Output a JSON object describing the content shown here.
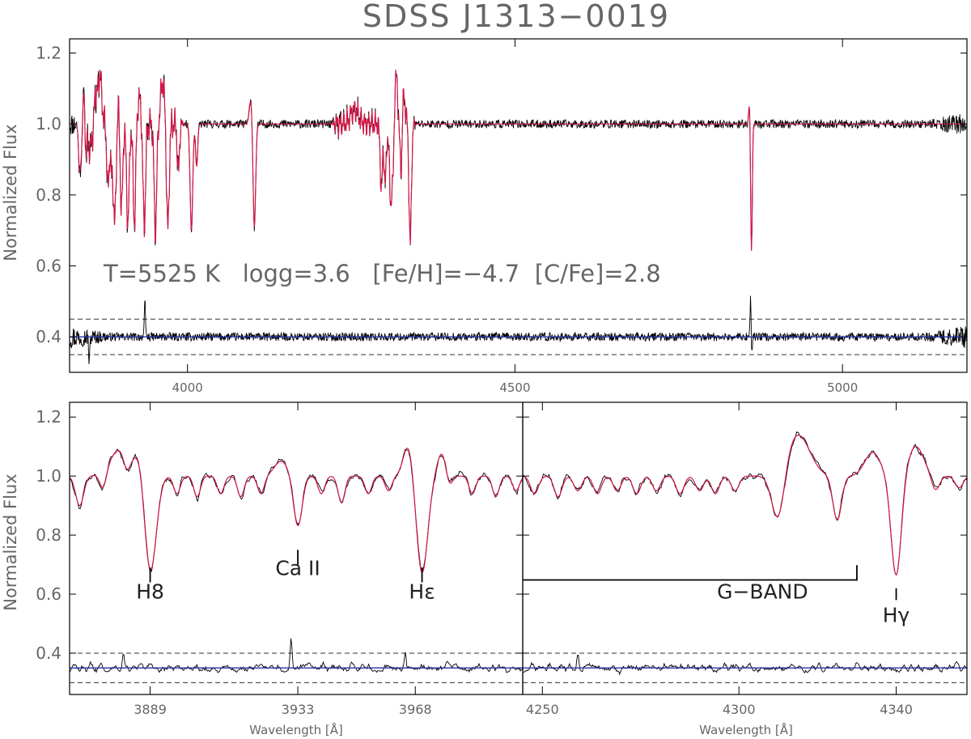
{
  "figure": {
    "title": "SDSS J1313−0019"
  },
  "chart_data": [
    {
      "id": "top",
      "type": "line",
      "title": "SDSS J1313−0019",
      "xlabel": "",
      "ylabel": "Normalized Flux",
      "xlim": [
        3820,
        5190
      ],
      "ylim": [
        0.3,
        1.24
      ],
      "xticks": [
        4000,
        4500,
        5000
      ],
      "yticks": [
        0.4,
        0.6,
        0.8,
        1.0,
        1.2
      ],
      "yticklabels": [
        "0.4",
        "0.6",
        "0.8",
        "1.0",
        "1.2"
      ],
      "annotation": "T=5525 K   logg=3.6   [Fe/H]=−4.7  [C/Fe]=2.8",
      "continuum": 1.0,
      "residual_baseline": 0.4,
      "residual_band": [
        0.35,
        0.45
      ],
      "lines": [
        {
          "w": 3835,
          "depth": 0.12,
          "width": 1.5
        },
        {
          "w": 3838,
          "depth": 0.1,
          "width": 1.5
        },
        {
          "w": 3845,
          "depth": 0.14,
          "width": 1.5
        },
        {
          "w": 3851,
          "depth": 0.1,
          "width": 1.5
        },
        {
          "w": 3856,
          "depth": 0.1,
          "width": 1.5
        },
        {
          "w": 3878,
          "depth": 0.14,
          "width": 1.6
        },
        {
          "w": 3880,
          "depth": 0.08,
          "width": 1.4
        },
        {
          "w": 3884,
          "depth": 0.12,
          "width": 1.5
        },
        {
          "w": 3889,
          "depth": 0.29,
          "width": 2.2
        },
        {
          "w": 3899,
          "depth": 0.28,
          "width": 2.0
        },
        {
          "w": 3909,
          "depth": 0.28,
          "width": 2.0
        },
        {
          "w": 3919,
          "depth": 0.28,
          "width": 2.0
        },
        {
          "w": 3934,
          "depth": 0.29,
          "width": 2.0
        },
        {
          "w": 3951,
          "depth": 0.3,
          "width": 2.0
        },
        {
          "w": 3970,
          "depth": 0.3,
          "width": 2.0
        },
        {
          "w": 3986,
          "depth": 0.14,
          "width": 1.6
        },
        {
          "w": 4006,
          "depth": 0.3,
          "width": 2.0
        },
        {
          "w": 4014,
          "depth": 0.12,
          "width": 1.6
        },
        {
          "w": 4102,
          "depth": 0.3,
          "width": 2.0
        },
        {
          "w": 4296,
          "depth": 0.18,
          "width": 1.8
        },
        {
          "w": 4302,
          "depth": 0.16,
          "width": 1.8
        },
        {
          "w": 4310,
          "depth": 0.22,
          "width": 1.8
        },
        {
          "w": 4314,
          "depth": 0.17,
          "width": 1.5
        },
        {
          "w": 4326,
          "depth": 0.16,
          "width": 1.5
        },
        {
          "w": 4340,
          "depth": 0.34,
          "width": 1.8
        },
        {
          "w": 4861,
          "depth": 0.36,
          "width": 1.2
        }
      ],
      "bumps": [
        {
          "w": 3842,
          "height": 0.1,
          "width": 2.5
        },
        {
          "w": 3858,
          "height": 0.1,
          "width": 2.5
        },
        {
          "w": 3866,
          "height": 0.14,
          "width": 3.0
        },
        {
          "w": 3895,
          "height": 0.08,
          "width": 3.0
        },
        {
          "w": 3926,
          "height": 0.07,
          "width": 3.0
        },
        {
          "w": 3962,
          "height": 0.12,
          "width": 3.0
        },
        {
          "w": 4097,
          "height": 0.07,
          "width": 2.5
        },
        {
          "w": 4255,
          "height": 0.04,
          "width": 6.0
        },
        {
          "w": 4318,
          "height": 0.14,
          "width": 2.5
        },
        {
          "w": 4330,
          "height": 0.08,
          "width": 2.5
        },
        {
          "w": 4858,
          "height": 0.06,
          "width": 1.2
        }
      ],
      "oscillating_regions": [
        {
          "from": 3840,
          "to": 3995,
          "amp": 0.05
        },
        {
          "from": 4220,
          "to": 4350,
          "amp": 0.04
        }
      ],
      "noise": {
        "observed": 0.012,
        "edge_observed": 0.035,
        "residual": 0.012,
        "edge_residual": 0.035
      },
      "residual_spikes": [
        {
          "w": 3935,
          "value": 0.5
        },
        {
          "w": 3850,
          "value": 0.32
        },
        {
          "w": 4860,
          "value": 0.56
        },
        {
          "w": 4861,
          "value": 0.3
        }
      ],
      "series": [
        {
          "name": "observed",
          "color": "#000000"
        },
        {
          "name": "model",
          "color": "#d01545"
        },
        {
          "name": "residual",
          "color": "#000000"
        },
        {
          "name": "baseline",
          "color": "#2233aa"
        }
      ]
    },
    {
      "id": "bottom-left",
      "type": "line",
      "xlabel": "Wavelength [Å]",
      "ylabel": "Normalized Flux",
      "xlim": [
        3865,
        4000
      ],
      "ylim": [
        0.26,
        1.25
      ],
      "xticks": [
        3889,
        3933,
        3968
      ],
      "yticks": [
        0.4,
        0.6,
        0.8,
        1.0,
        1.2
      ],
      "yticklabels": [
        "0.4",
        "0.6",
        "0.8",
        "1.0",
        "1.2"
      ],
      "continuum": 1.0,
      "residual_baseline": 0.35,
      "residual_band": [
        0.3,
        0.4
      ],
      "lines": [
        {
          "w": 3868,
          "depth": 0.1,
          "width": 1.2
        },
        {
          "w": 3875,
          "depth": 0.06,
          "width": 1.0
        },
        {
          "w": 3882,
          "depth": 0.05,
          "width": 1.0
        },
        {
          "w": 3889,
          "depth": 0.33,
          "width": 1.8
        },
        {
          "w": 3897,
          "depth": 0.06,
          "width": 1.0
        },
        {
          "w": 3903,
          "depth": 0.07,
          "width": 1.0
        },
        {
          "w": 3910,
          "depth": 0.06,
          "width": 1.0
        },
        {
          "w": 3916,
          "depth": 0.07,
          "width": 1.0
        },
        {
          "w": 3922,
          "depth": 0.06,
          "width": 1.0
        },
        {
          "w": 3933,
          "depth": 0.17,
          "width": 1.3
        },
        {
          "w": 3940,
          "depth": 0.06,
          "width": 1.0
        },
        {
          "w": 3946,
          "depth": 0.09,
          "width": 1.0
        },
        {
          "w": 3954,
          "depth": 0.06,
          "width": 1.0
        },
        {
          "w": 3960,
          "depth": 0.05,
          "width": 1.0
        },
        {
          "w": 3970,
          "depth": 0.33,
          "width": 1.7
        },
        {
          "w": 3978,
          "depth": 0.05,
          "width": 1.0
        },
        {
          "w": 3985,
          "depth": 0.06,
          "width": 1.0
        },
        {
          "w": 3992,
          "depth": 0.07,
          "width": 1.0
        },
        {
          "w": 3998,
          "depth": 0.05,
          "width": 1.0
        }
      ],
      "bumps": [
        {
          "w": 3880,
          "height": 0.09,
          "width": 3.0
        },
        {
          "w": 3886,
          "height": 0.08,
          "width": 1.5
        },
        {
          "w": 3928,
          "height": 0.05,
          "width": 2.0
        },
        {
          "w": 3966,
          "height": 0.11,
          "width": 1.5
        },
        {
          "w": 3976,
          "height": 0.08,
          "width": 1.5
        }
      ],
      "noise": {
        "observed": 0.012,
        "residual": 0.015
      },
      "residual_spikes": [
        {
          "w": 3881,
          "value": 0.41
        },
        {
          "w": 3931,
          "value": 0.45
        },
        {
          "w": 3965,
          "value": 0.41
        }
      ],
      "labels": [
        {
          "name": "h8",
          "text": "H8",
          "w": 3889,
          "y": 0.585,
          "tick_y": [
            0.69,
            0.64
          ]
        },
        {
          "name": "ca-ii",
          "text": "Ca  II",
          "w": 3933,
          "y": 0.665,
          "tick_y": [
            0.75,
            0.7
          ]
        },
        {
          "name": "h-epsilon",
          "text": "Hε",
          "w": 3970,
          "y": 0.585,
          "tick_y": [
            0.69,
            0.64
          ]
        }
      ],
      "series": [
        {
          "name": "observed",
          "color": "#000000"
        },
        {
          "name": "model",
          "color": "#d01545"
        },
        {
          "name": "residual",
          "color": "#000000"
        },
        {
          "name": "baseline",
          "color": "#2233aa"
        }
      ]
    },
    {
      "id": "bottom-right",
      "type": "line",
      "xlabel": "Wavelength [Å]",
      "xlim": [
        4245,
        4358
      ],
      "ylim": [
        0.26,
        1.25
      ],
      "xticks": [
        4250,
        4300,
        4340
      ],
      "yticks": [
        0.4,
        0.6,
        0.8,
        1.0,
        1.2
      ],
      "continuum": 1.0,
      "residual_baseline": 0.35,
      "residual_band": [
        0.3,
        0.4
      ],
      "lines": [
        {
          "w": 4248,
          "depth": 0.06,
          "width": 1.0
        },
        {
          "w": 4254,
          "depth": 0.07,
          "width": 1.0
        },
        {
          "w": 4259,
          "depth": 0.05,
          "width": 1.0
        },
        {
          "w": 4264,
          "depth": 0.06,
          "width": 1.0
        },
        {
          "w": 4269,
          "depth": 0.05,
          "width": 1.0
        },
        {
          "w": 4274,
          "depth": 0.06,
          "width": 1.0
        },
        {
          "w": 4279,
          "depth": 0.05,
          "width": 1.0
        },
        {
          "w": 4285,
          "depth": 0.06,
          "width": 1.0
        },
        {
          "w": 4290,
          "depth": 0.05,
          "width": 1.0
        },
        {
          "w": 4294,
          "depth": 0.06,
          "width": 1.0
        },
        {
          "w": 4299,
          "depth": 0.05,
          "width": 1.0
        },
        {
          "w": 4310,
          "depth": 0.17,
          "width": 1.6
        },
        {
          "w": 4325,
          "depth": 0.15,
          "width": 1.1
        },
        {
          "w": 4340,
          "depth": 0.34,
          "width": 1.3
        },
        {
          "w": 4350,
          "depth": 0.05,
          "width": 1.0
        },
        {
          "w": 4356,
          "depth": 0.04,
          "width": 1.0
        }
      ],
      "bumps": [
        {
          "w": 4315,
          "height": 0.14,
          "width": 3.0
        },
        {
          "w": 4334,
          "height": 0.08,
          "width": 2.0
        },
        {
          "w": 4345,
          "height": 0.1,
          "width": 2.0
        }
      ],
      "noise": {
        "observed": 0.012,
        "residual": 0.015
      },
      "residual_spikes": [
        {
          "w": 4259,
          "value": 0.4
        }
      ],
      "labels": [
        {
          "name": "g-band",
          "text": "G−BAND",
          "w": 4306,
          "y": 0.585
        },
        {
          "name": "h-gamma",
          "text": "Hγ",
          "w": 4340,
          "y": 0.505,
          "tick_y": [
            0.62,
            0.58
          ]
        }
      ],
      "bracket": {
        "from": 4245,
        "to": 4330,
        "y": 0.648,
        "drop": 0.05
      },
      "series": [
        {
          "name": "observed",
          "color": "#000000"
        },
        {
          "name": "model",
          "color": "#d01545"
        },
        {
          "name": "residual",
          "color": "#000000"
        },
        {
          "name": "baseline",
          "color": "#2233aa"
        }
      ]
    }
  ]
}
